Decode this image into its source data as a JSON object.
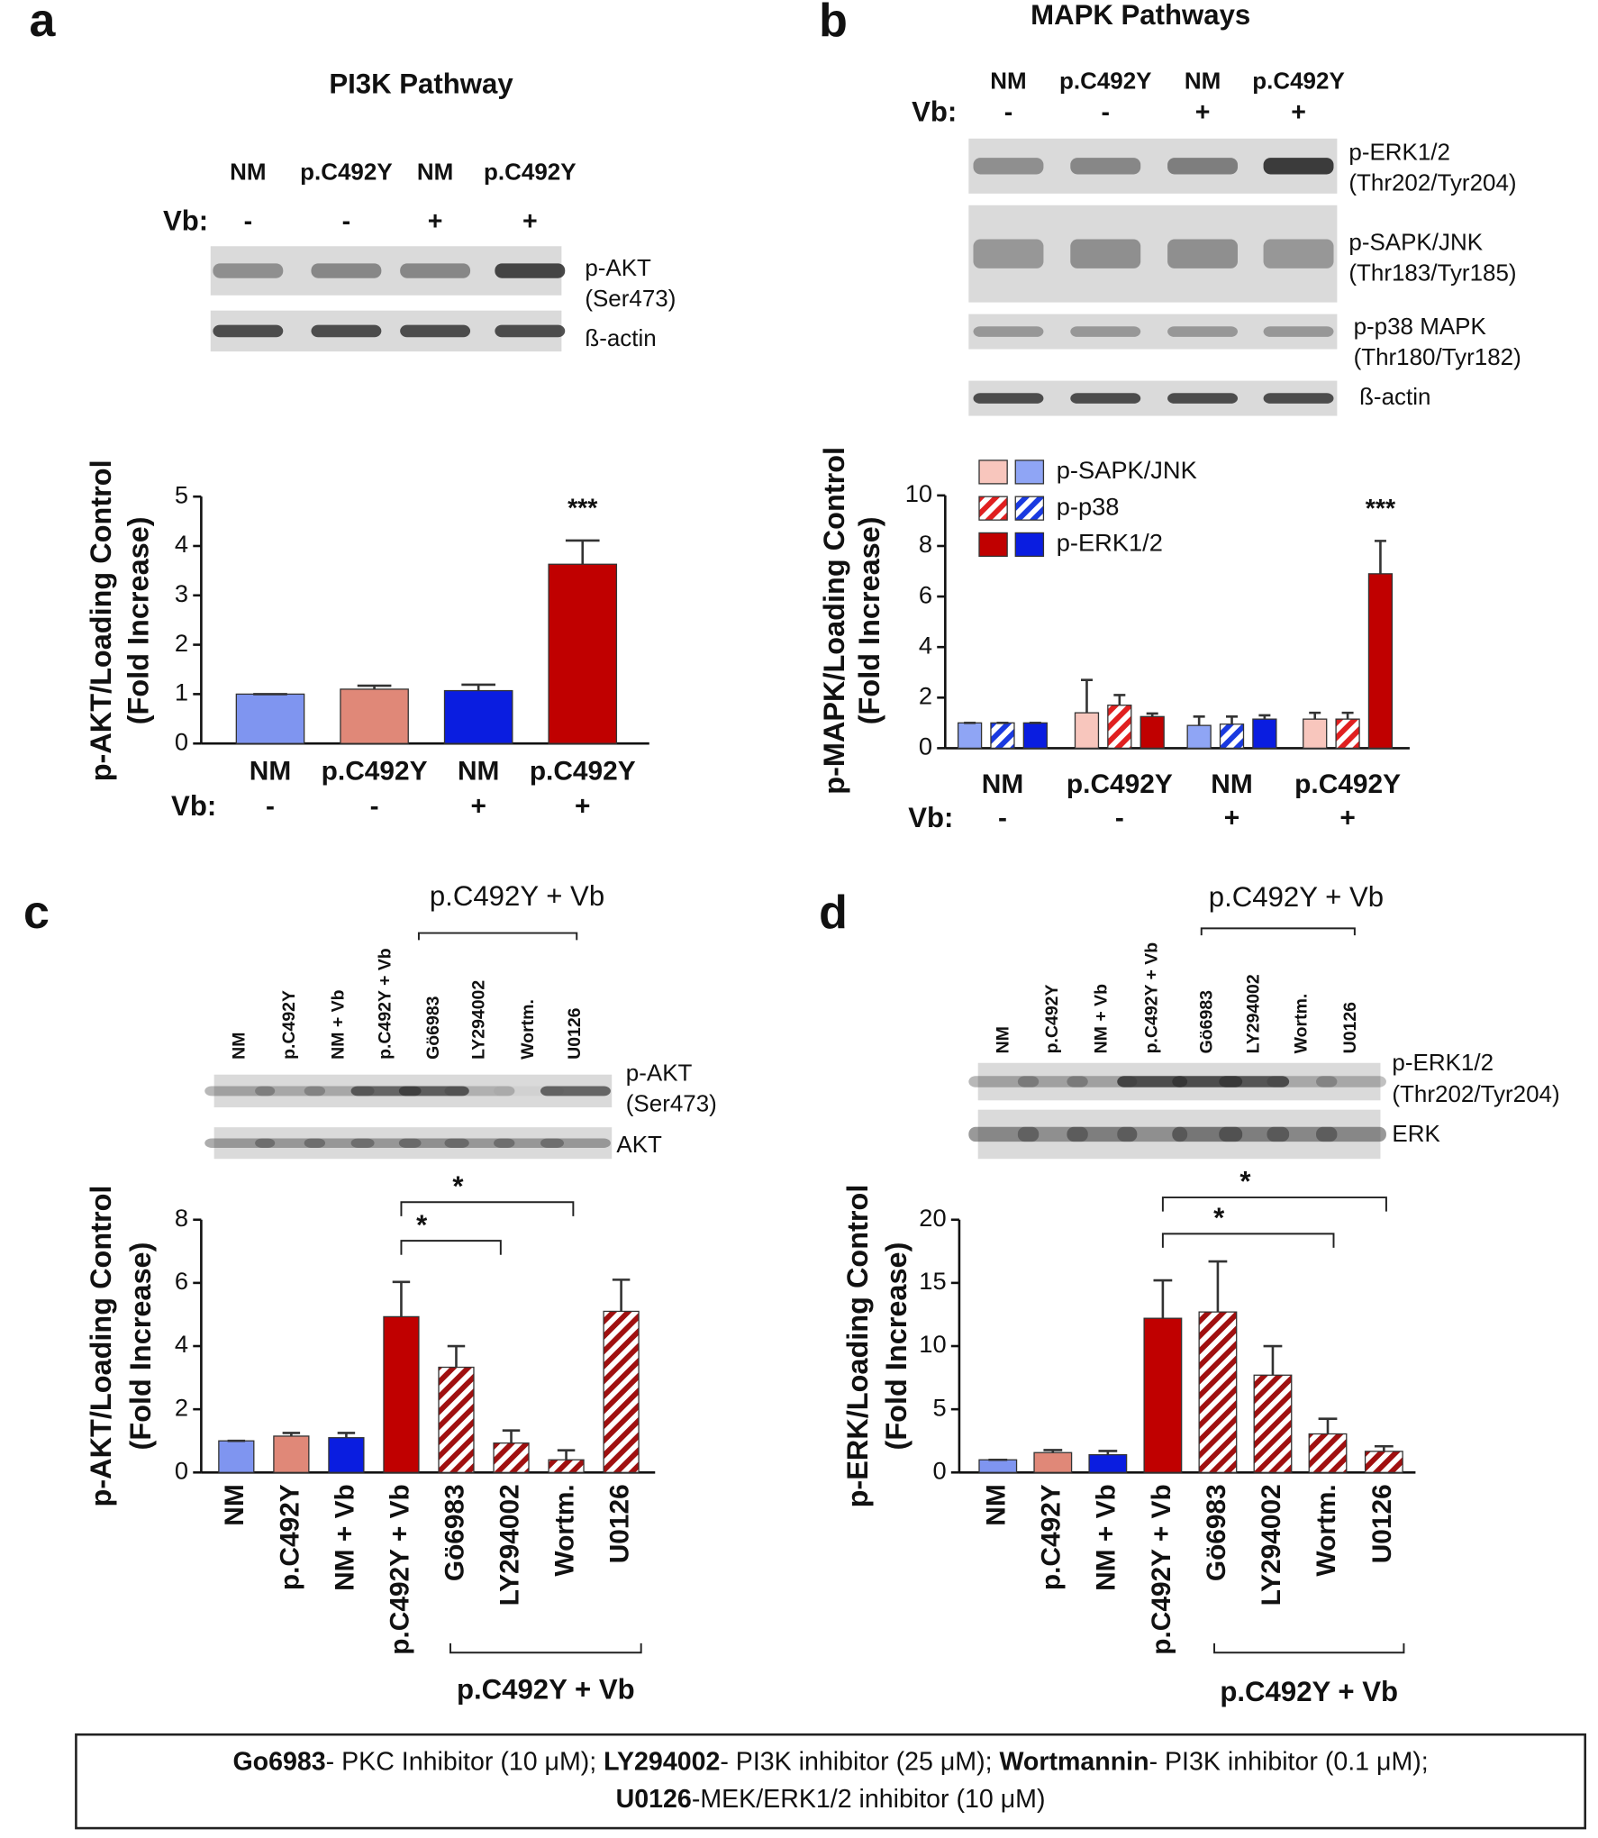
{
  "chart_data": [
    {
      "type": "bar",
      "panel": "a",
      "title": "PI3K Pathway",
      "blot": {
        "lanes": [
          "NM",
          "p.C492Y",
          "NM",
          "p.C492Y"
        ],
        "treatment_label": "Vb:",
        "treatment": [
          "-",
          "-",
          "+",
          "+"
        ],
        "bands": [
          [
            "p-AKT",
            "(Ser473)"
          ],
          [
            "ß-actin"
          ]
        ]
      },
      "ylabel": [
        "p-AKT/Loading Control",
        "(Fold Increase)"
      ],
      "categories": [
        "NM",
        "p.C492Y",
        "NM",
        "p.C492Y"
      ],
      "x_treatment_label": "Vb:",
      "x_treatment": [
        "-",
        "-",
        "+",
        "+"
      ],
      "values": [
        1.0,
        1.1,
        1.07,
        3.63
      ],
      "errors": [
        0,
        0.07,
        0.12,
        0.48
      ],
      "colors": [
        "#7f95f0",
        "#e08878",
        "#0a1de0",
        "#c00000"
      ],
      "ylim": [
        0,
        5
      ],
      "yticks": [
        0,
        1,
        2,
        3,
        4,
        5
      ],
      "annotations": [
        "***"
      ]
    },
    {
      "type": "bar",
      "panel": "b",
      "title": "MAPK Pathways",
      "blot": {
        "lanes": [
          "NM",
          "p.C492Y",
          "NM",
          "p.C492Y"
        ],
        "treatment_label": "Vb:",
        "treatment": [
          "-",
          "-",
          "+",
          "+"
        ],
        "bands": [
          [
            "p-ERK1/2",
            "(Thr202/Tyr204)"
          ],
          [
            "p-SAPK/JNK",
            "(Thr183/Tyr185)"
          ],
          [
            "p-p38 MAPK",
            "(Thr180/Tyr182)"
          ],
          [
            "ß-actin"
          ]
        ]
      },
      "ylabel": [
        "p-MAPK/Loading Control",
        "(Fold Increase)"
      ],
      "categories": [
        "NM",
        "p.C492Y",
        "NM",
        "p.C492Y"
      ],
      "x_treatment_label": "Vb:",
      "x_treatment": [
        "-",
        "-",
        "+",
        "+"
      ],
      "series": [
        {
          "name": "p-SAPK/JNK",
          "pattern": "solid",
          "colors": [
            "#8fa5f5",
            "#f8c6bd",
            "#8fa5f5",
            "#f8c6bd"
          ],
          "values": [
            1.0,
            1.4,
            0.9,
            1.15
          ],
          "errors": [
            0,
            1.3,
            0.35,
            0.25
          ]
        },
        {
          "name": "p-p38",
          "pattern": "hatch",
          "colors": [
            "#1a3ae0",
            "#e02020",
            "#1a3ae0",
            "#e02020"
          ],
          "values": [
            1.0,
            1.7,
            0.95,
            1.15
          ],
          "errors": [
            0,
            0.4,
            0.3,
            0.25
          ]
        },
        {
          "name": "p-ERK1/2",
          "pattern": "solid",
          "colors": [
            "#0a1de0",
            "#c00000",
            "#0a1de0",
            "#c00000"
          ],
          "values": [
            1.0,
            1.25,
            1.15,
            6.9
          ],
          "errors": [
            0,
            0.12,
            0.15,
            1.3
          ]
        }
      ],
      "ylim": [
        0,
        10
      ],
      "yticks": [
        0,
        2,
        4,
        6,
        8,
        10
      ],
      "annotations": [
        "***"
      ]
    },
    {
      "type": "bar",
      "panel": "c",
      "blot": {
        "lanes": [
          "NM",
          "p.C492Y",
          "NM + Vb",
          "p.C492Y + Vb",
          "Gö6983",
          "LY294002",
          "Wortm.",
          "U0126"
        ],
        "group_label": "p.C492Y + Vb",
        "bands": [
          [
            "p-AKT",
            "(Ser473)"
          ],
          [
            "AKT"
          ]
        ]
      },
      "ylabel": [
        "p-AKT/Loading Control",
        "(Fold Increase)"
      ],
      "categories": [
        "NM",
        "p.C492Y",
        "NM + Vb",
        "p.C492Y + Vb",
        "Gö6983",
        "LY294002",
        "Wortm.",
        "U0126"
      ],
      "group_label": "p.C492Y + Vb",
      "values": [
        1.0,
        1.15,
        1.1,
        4.93,
        3.33,
        0.93,
        0.4,
        5.1
      ],
      "errors": [
        0,
        0.1,
        0.15,
        1.1,
        0.67,
        0.4,
        0.3,
        1.0
      ],
      "colors": [
        "#7f95f0",
        "#e08878",
        "#0a1de0",
        "#c00000",
        "#a01010",
        "#a01010",
        "#a01010",
        "#a01010"
      ],
      "patterns": [
        "solid",
        "solid",
        "solid",
        "solid",
        "hatch",
        "hatch",
        "hatch",
        "hatch"
      ],
      "ylim": [
        0,
        8
      ],
      "yticks": [
        0,
        2,
        4,
        6,
        8
      ],
      "annotations": [
        "*",
        "*"
      ]
    },
    {
      "type": "bar",
      "panel": "d",
      "blot": {
        "lanes": [
          "NM",
          "p.C492Y",
          "NM + Vb",
          "p.C492Y + Vb",
          "Gö6983",
          "LY294002",
          "Wortm.",
          "U0126"
        ],
        "group_label": "p.C492Y + Vb",
        "bands": [
          [
            "p-ERK1/2",
            "(Thr202/Tyr204)"
          ],
          [
            "ERK"
          ]
        ]
      },
      "ylabel": [
        "p-ERK/Loading Control",
        "(Fold Increase)"
      ],
      "categories": [
        "NM",
        "p.C492Y",
        "NM + Vb",
        "p.C492Y + Vb",
        "Gö6983",
        "LY294002",
        "Wortm.",
        "U0126"
      ],
      "group_label": "p.C492Y + Vb",
      "values": [
        1.0,
        1.57,
        1.4,
        12.2,
        12.7,
        7.7,
        3.05,
        1.67
      ],
      "errors": [
        0,
        0.2,
        0.3,
        3.0,
        4.0,
        2.3,
        1.2,
        0.4
      ],
      "colors": [
        "#7f95f0",
        "#e08878",
        "#0a1de0",
        "#c00000",
        "#a01010",
        "#a01010",
        "#a01010",
        "#a01010"
      ],
      "patterns": [
        "solid",
        "solid",
        "solid",
        "solid",
        "hatch",
        "hatch",
        "hatch",
        "hatch"
      ],
      "ylim": [
        0,
        20
      ],
      "yticks": [
        0,
        5,
        10,
        15,
        20
      ],
      "annotations": [
        "*",
        "*"
      ]
    }
  ],
  "footnote": [
    [
      {
        "text": "Go6983",
        "bold": true
      },
      {
        "text": "- PKC Inhibitor (10 μM); ",
        "bold": false
      },
      {
        "text": "LY294002",
        "bold": true
      },
      {
        "text": "- PI3K  inhibitor (25 μM); ",
        "bold": false
      },
      {
        "text": "Wortmannin",
        "bold": true
      },
      {
        "text": "- PI3K  inhibitor (0.1 μM);",
        "bold": false
      }
    ],
    [
      {
        "text": "U0126",
        "bold": true
      },
      {
        "text": "-MEK/ERK1/2 inhibitor (10 μM)",
        "bold": false
      }
    ]
  ]
}
